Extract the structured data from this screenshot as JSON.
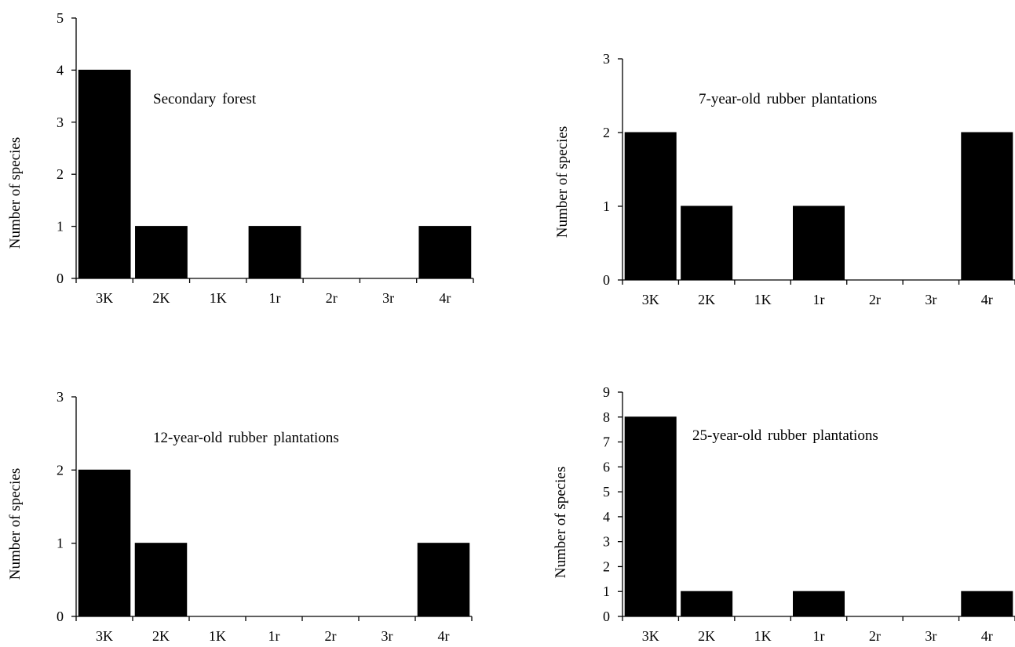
{
  "chart_data": [
    {
      "type": "bar",
      "title": "Secondary forest",
      "xlabel": "",
      "ylabel": "Number of species",
      "categories": [
        "3K",
        "2K",
        "1K",
        "1r",
        "2r",
        "3r",
        "4r"
      ],
      "values": [
        4,
        1,
        0,
        1,
        0,
        0,
        1
      ],
      "ylim": [
        0,
        5
      ],
      "yticks": [
        0,
        1,
        2,
        3,
        4,
        5
      ],
      "grid": false,
      "bar_color": "#000000"
    },
    {
      "type": "bar",
      "title": "7-year-old rubber plantations",
      "xlabel": "",
      "ylabel": "Number of species",
      "categories": [
        "3K",
        "2K",
        "1K",
        "1r",
        "2r",
        "3r",
        "4r"
      ],
      "values": [
        2,
        1,
        0,
        1,
        0,
        0,
        2
      ],
      "ylim": [
        0,
        3
      ],
      "yticks": [
        0,
        1,
        2,
        3
      ],
      "grid": false,
      "bar_color": "#000000"
    },
    {
      "type": "bar",
      "title": "12-year-old rubber plantations",
      "xlabel": "",
      "ylabel": "Number of species",
      "categories": [
        "3K",
        "2K",
        "1K",
        "1r",
        "2r",
        "3r",
        "4r"
      ],
      "values": [
        2,
        1,
        0,
        0,
        0,
        0,
        1
      ],
      "ylim": [
        0,
        3
      ],
      "yticks": [
        0,
        1,
        2,
        3
      ],
      "grid": false,
      "bar_color": "#000000"
    },
    {
      "type": "bar",
      "title": "25-year-old rubber plantations",
      "xlabel": "",
      "ylabel": "Number of species",
      "categories": [
        "3K",
        "2K",
        "1K",
        "1r",
        "2r",
        "3r",
        "4r"
      ],
      "values": [
        8,
        1,
        0,
        1,
        0,
        0,
        1
      ],
      "ylim": [
        0,
        9
      ],
      "yticks": [
        0,
        1,
        2,
        3,
        4,
        5,
        6,
        7,
        8,
        9
      ],
      "grid": false,
      "bar_color": "#000000"
    }
  ]
}
